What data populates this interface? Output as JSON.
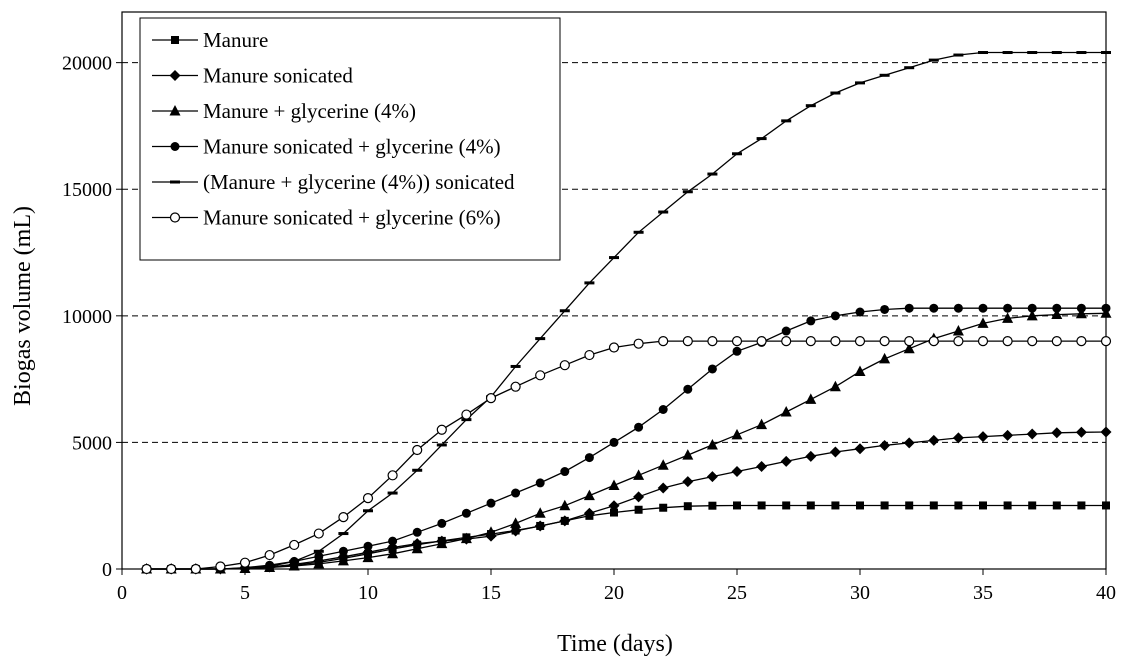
{
  "chart_data": {
    "type": "line",
    "title": "",
    "xlabel": "Time (days)",
    "ylabel": "Biogas volume (mL)",
    "xlim": [
      0,
      40
    ],
    "ylim": [
      0,
      22000
    ],
    "xticks": [
      0,
      5,
      10,
      15,
      20,
      25,
      30,
      35,
      40
    ],
    "yticks": [
      0,
      5000,
      10000,
      15000,
      20000
    ],
    "grid": "horizontal dashed at 5000, 10000, 15000, 20000",
    "legend_position": "top-left",
    "x": [
      1,
      2,
      3,
      4,
      5,
      6,
      7,
      8,
      9,
      10,
      11,
      12,
      13,
      14,
      15,
      16,
      17,
      18,
      19,
      20,
      21,
      22,
      23,
      24,
      25,
      26,
      27,
      28,
      29,
      30,
      31,
      32,
      33,
      34,
      35,
      36,
      37,
      38,
      39,
      40
    ],
    "series": [
      {
        "name": "Manure",
        "marker": "square",
        "values": [
          0,
          0,
          0,
          0,
          20,
          60,
          150,
          260,
          420,
          600,
          790,
          960,
          1110,
          1250,
          1380,
          1520,
          1700,
          1900,
          2100,
          2230,
          2340,
          2420,
          2480,
          2500,
          2510,
          2510,
          2510,
          2510,
          2510,
          2510,
          2510,
          2510,
          2510,
          2510,
          2510,
          2510,
          2510,
          2510,
          2510,
          2510
        ]
      },
      {
        "name": "Manure sonicated",
        "marker": "diamond",
        "values": [
          0,
          0,
          0,
          0,
          30,
          80,
          180,
          320,
          480,
          660,
          850,
          1000,
          1100,
          1180,
          1300,
          1500,
          1700,
          1900,
          2200,
          2500,
          2850,
          3200,
          3450,
          3650,
          3850,
          4050,
          4250,
          4450,
          4620,
          4750,
          4880,
          4980,
          5080,
          5180,
          5230,
          5280,
          5330,
          5380,
          5400,
          5410
        ]
      },
      {
        "name": "Manure + glycerine (4%)",
        "marker": "triangle",
        "values": [
          0,
          0,
          0,
          0,
          20,
          60,
          120,
          200,
          320,
          450,
          600,
          800,
          1000,
          1200,
          1450,
          1800,
          2200,
          2500,
          2900,
          3300,
          3700,
          4100,
          4500,
          4900,
          5300,
          5700,
          6200,
          6700,
          7200,
          7800,
          8300,
          8700,
          9100,
          9400,
          9700,
          9900,
          10000,
          10050,
          10080,
          10100
        ]
      },
      {
        "name": "Manure sonicated + glycerine (4%)",
        "marker": "circle",
        "values": [
          0,
          0,
          0,
          0,
          50,
          150,
          300,
          500,
          700,
          900,
          1100,
          1450,
          1800,
          2200,
          2600,
          3000,
          3400,
          3850,
          4400,
          5000,
          5600,
          6300,
          7100,
          7900,
          8600,
          8950,
          9400,
          9800,
          10000,
          10150,
          10250,
          10300,
          10300,
          10300,
          10300,
          10300,
          10300,
          10300,
          10300,
          10300
        ]
      },
      {
        "name": "(Manure + glycerine (4%)) sonicated",
        "marker": "dash",
        "values": [
          0,
          0,
          0,
          0,
          30,
          100,
          300,
          700,
          1400,
          2300,
          3000,
          3900,
          4900,
          5900,
          6800,
          8000,
          9100,
          10200,
          11300,
          12300,
          13300,
          14100,
          14900,
          15600,
          16400,
          17000,
          17700,
          18300,
          18800,
          19200,
          19500,
          19800,
          20100,
          20300,
          20400,
          20400,
          20400,
          20400,
          20400,
          20400
        ]
      },
      {
        "name": "Manure sonicated + glycerine (6%)",
        "marker": "open-circle",
        "values": [
          0,
          0,
          0,
          100,
          250,
          550,
          950,
          1400,
          2050,
          2800,
          3700,
          4700,
          5500,
          6100,
          6750,
          7200,
          7650,
          8050,
          8450,
          8750,
          8900,
          9000,
          9000,
          9000,
          9000,
          9000,
          9000,
          9000,
          9000,
          9000,
          9000,
          9000,
          9000,
          9000,
          9000,
          9000,
          9000,
          9000,
          9000,
          9000
        ]
      }
    ]
  }
}
